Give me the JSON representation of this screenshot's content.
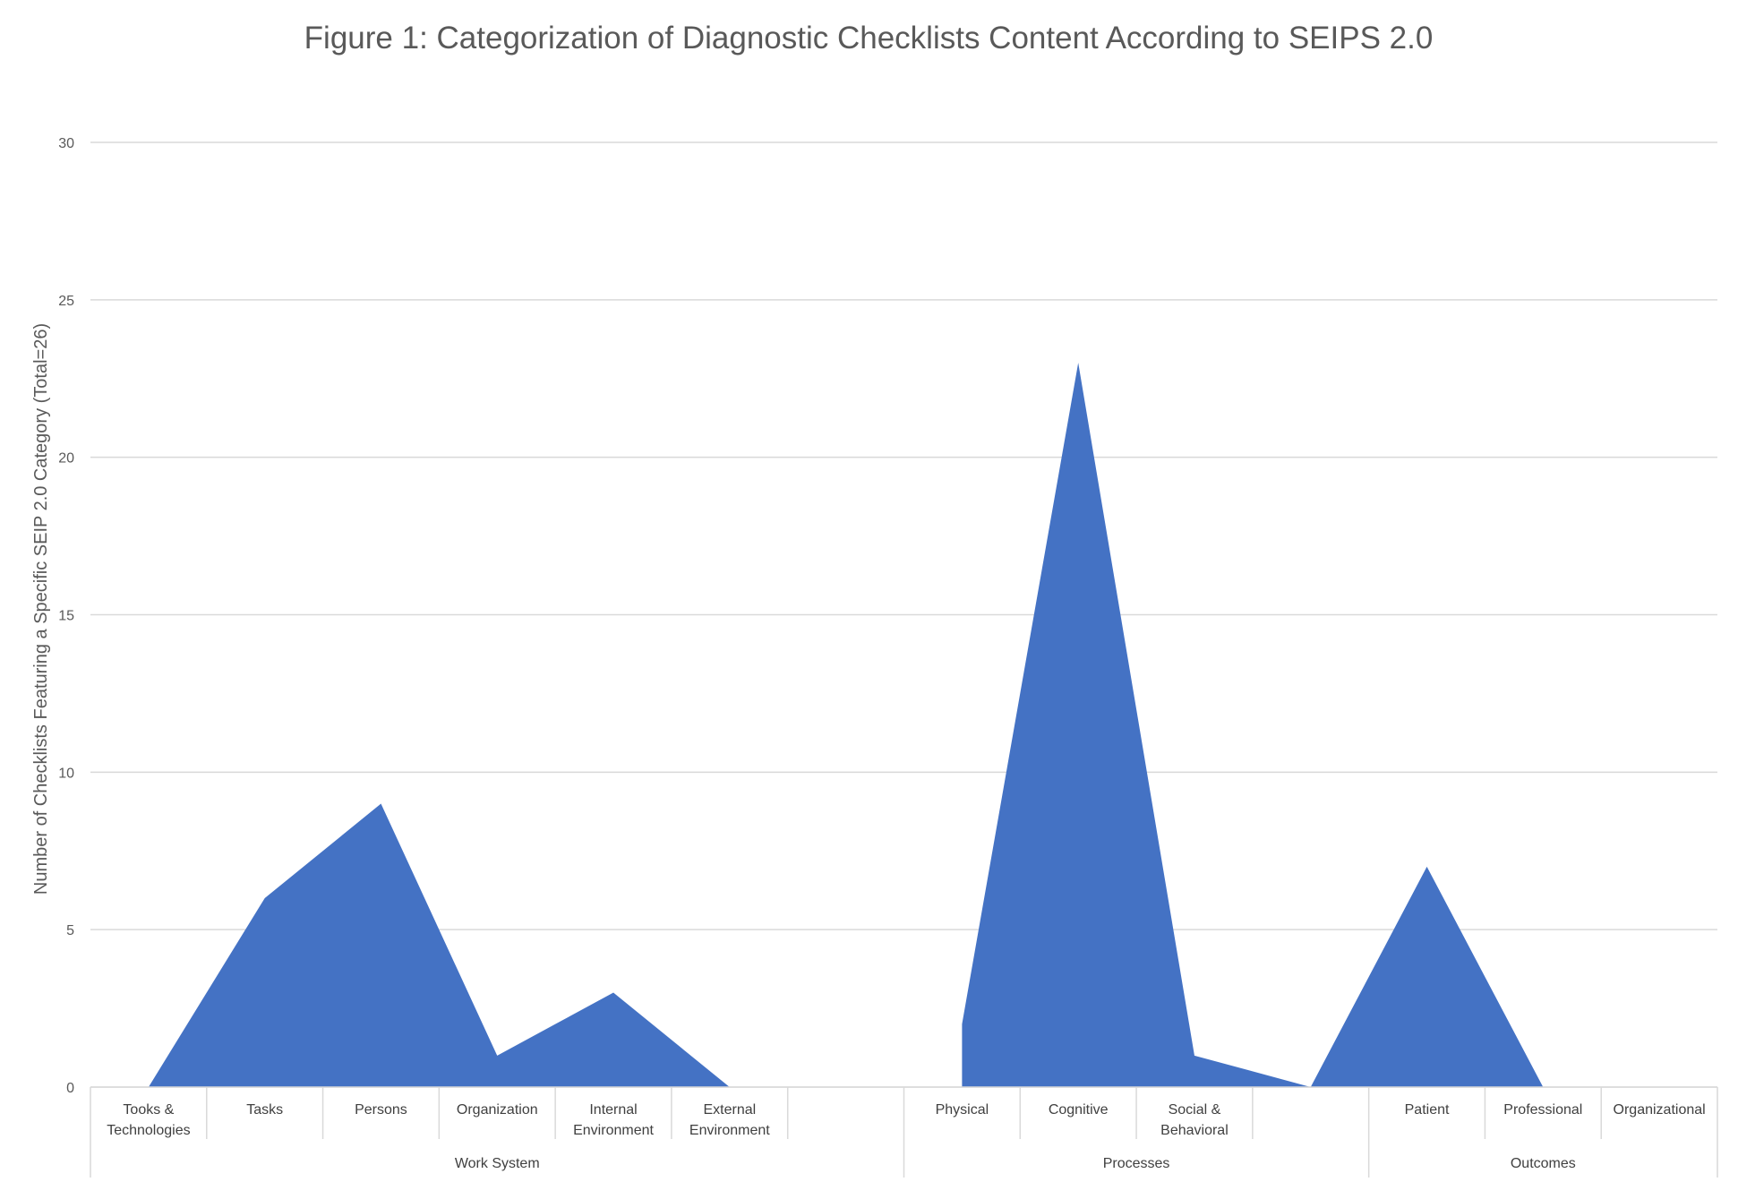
{
  "chart_data": {
    "type": "area",
    "title": "Figure 1: Categorization of Diagnostic Checklists Content According to SEIPS 2.0",
    "ylabel": "Number of Checklists Featuring a Specific SEIP 2.0 Category (Total=26)",
    "xlabel": "",
    "ylim": [
      0,
      30
    ],
    "yticks": [
      "0",
      "5",
      "10",
      "15",
      "20",
      "25",
      "30"
    ],
    "grid": true,
    "color": "#4472C4",
    "categories": [
      [
        "Tooks &",
        "Technologies"
      ],
      [
        "Tasks"
      ],
      [
        "Persons"
      ],
      [
        "Organization"
      ],
      [
        "Internal",
        "Environment"
      ],
      [
        "External",
        "Environment"
      ],
      [
        ""
      ],
      [
        "Physical"
      ],
      [
        "Cognitive"
      ],
      [
        "Social &",
        "Behavioral"
      ],
      [
        ""
      ],
      [
        "Patient"
      ],
      [
        "Professional"
      ],
      [
        "Organizational"
      ]
    ],
    "values": [
      0,
      6,
      9,
      1,
      3,
      0,
      null,
      2,
      23,
      1,
      0,
      7,
      0,
      null
    ],
    "groups": [
      {
        "label": "Work System",
        "span": 7
      },
      {
        "label": "Processes",
        "span": 4
      },
      {
        "label": "Outcomes",
        "span": 3
      }
    ]
  }
}
